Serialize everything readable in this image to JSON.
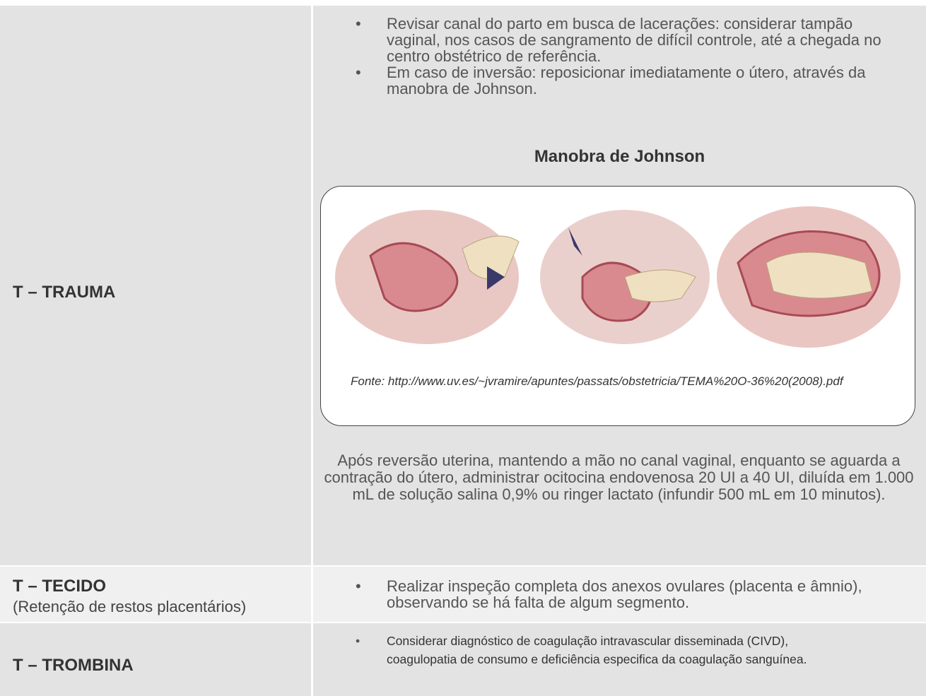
{
  "table": {
    "rows": [
      {
        "label": "T – TRAUMA",
        "bullets": [
          "Revisar canal do parto em busca de lacerações: considerar tampão vaginal, nos casos de sangramento de difícil controle, até a chegada no centro obstétrico de referência.",
          "Em caso de inversão: reposicionar imediatamente o útero, através da manobra de Johnson."
        ],
        "figure": {
          "title": "Manobra de Johnson",
          "caption": "Fonte: http://www.uv.es/~jvramire/apuntes/passats/obstetricia/TEMA%20O-36%20(2008).pdf"
        },
        "paragraph": "Após reversão uterina, mantendo a mão no canal vaginal, enquanto se aguarda a contração do útero, administrar ocitocina endovenosa 20 UI a 40 UI, diluída em 1.000 mL de solução salina 0,9% ou ringer lactato (infundir 500 mL em 10 minutos)."
      },
      {
        "label": "T – TECIDO",
        "sublabel": "(Retenção de restos placentários)",
        "bullets": [
          "Realizar inspeção completa dos anexos ovulares (placenta e âmnio), observando se há falta de algum segmento."
        ]
      },
      {
        "label": "T – TROMBINA",
        "bullets": [
          "Considerar diagnóstico de coagulação intravascular disseminada (CIVD), coagulopatia de consumo e deficiência especifica da coagulação sanguínea."
        ]
      }
    ]
  }
}
